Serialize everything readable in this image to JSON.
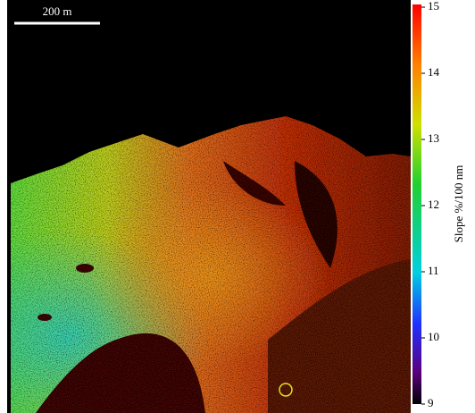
{
  "scale_bar": "200 m",
  "colorbar": {
    "label": "Slope %/100 nm",
    "lim": [
      9,
      15
    ],
    "ticks": [
      9,
      10,
      11,
      12,
      13,
      14,
      15
    ]
  }
}
